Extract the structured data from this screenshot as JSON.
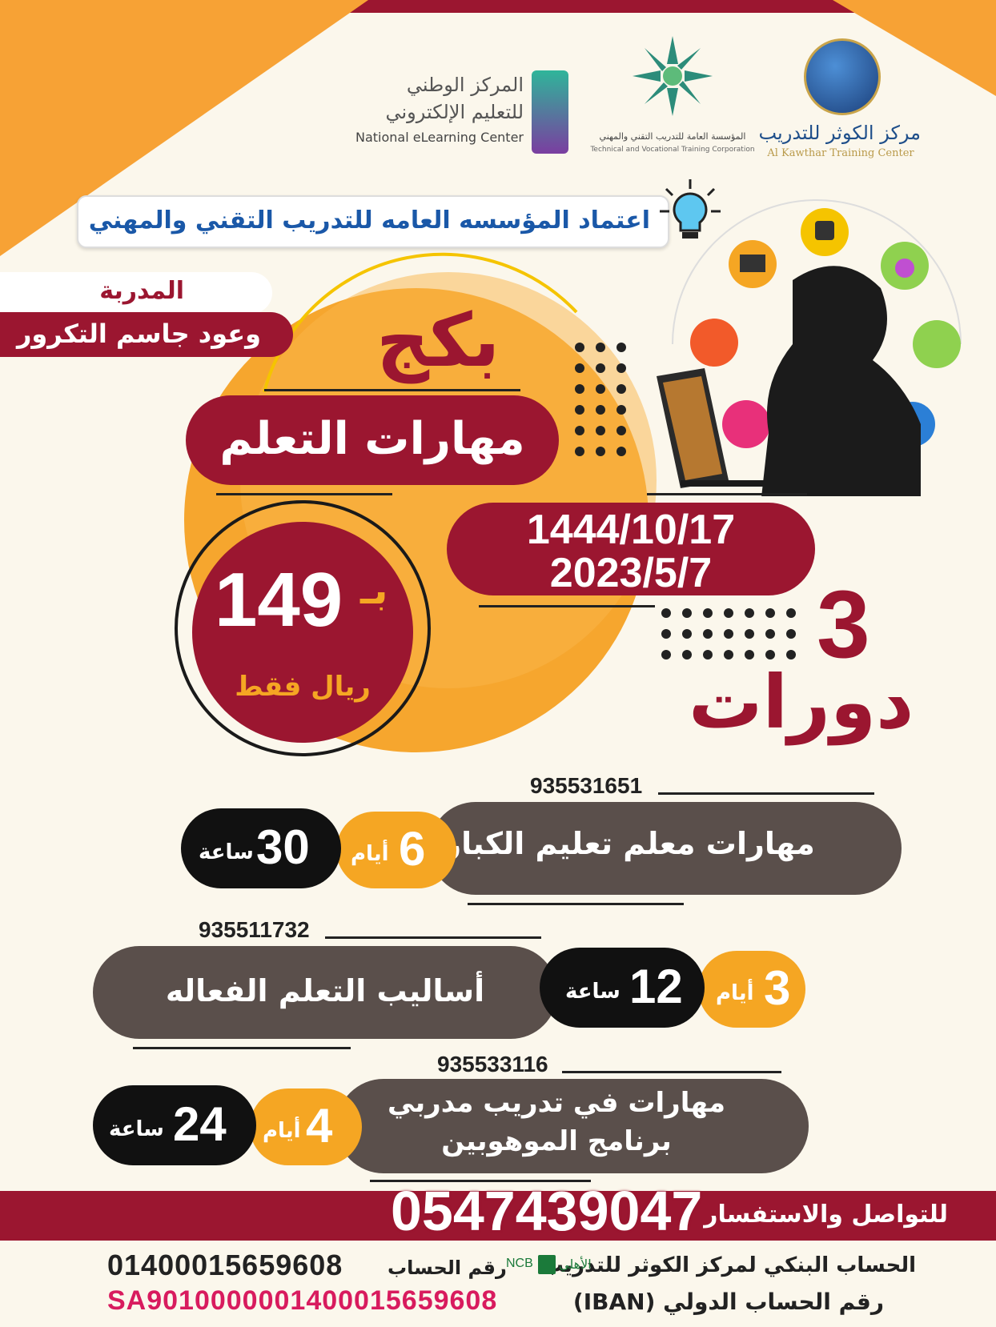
{
  "logos": {
    "nelc_ar_line1": "المركز الوطني",
    "nelc_ar_line2": "للتعليم الإلكتروني",
    "nelc_en": "National eLearning Center",
    "tvtc_ar": "المؤسسة العامة للتدريب التقني والمهني",
    "tvtc_en": "Technical and Vocational Training Corporation",
    "kawthar_ar": "مركز الكوثر للتدريب",
    "kawthar_en": "Al Kawthar Training Center"
  },
  "accreditation": "اعتماد المؤسسه العامه للتدريب التقني والمهني",
  "trainer": {
    "label": "المدربة",
    "name": "وعود جاسم التكرور"
  },
  "package": {
    "word": "بكج",
    "title": "مهارات التعلم",
    "date_hijri": "1444/10/17",
    "date_gregorian": "2023/5/7",
    "price_prefix": "بـ",
    "price": "149",
    "currency": "ريال فقط",
    "count": "3",
    "count_label": "دورات"
  },
  "courses": [
    {
      "code": "935531651",
      "name": "مهارات معلم تعليم الكبار",
      "days": "6",
      "days_label": "أيام",
      "hours": "30",
      "hours_label": "ساعة"
    },
    {
      "code": "935511732",
      "name": "أساليب التعلم الفعاله",
      "days": "3",
      "days_label": "أيام",
      "hours": "12",
      "hours_label": "ساعة"
    },
    {
      "code": "935533116",
      "name_line1": "مهارات في تدريب مدربي",
      "name_line2": "برنامج الموهوبين",
      "days": "4",
      "days_label": "أيام",
      "hours": "24",
      "hours_label": "ساعة"
    }
  ],
  "contact": {
    "label": "للتواصل والاستفسار",
    "phone": "0547439047"
  },
  "bank": {
    "account_label": "الحساب البنكي لمركز الكوثر للتدريب",
    "bank_name_ar": "الأهلي",
    "bank_name_en": "NCB",
    "account_no_label": "رقم الحساب",
    "account_no": "01400015659608",
    "iban_label": "رقم الحساب الدولي (IBAN)",
    "iban": "SA9010000001400015659608"
  },
  "colors": {
    "maroon": "#9b1630",
    "orange": "#f5a623",
    "gray": "#5a4f4b",
    "bg": "#fbf7ec"
  }
}
